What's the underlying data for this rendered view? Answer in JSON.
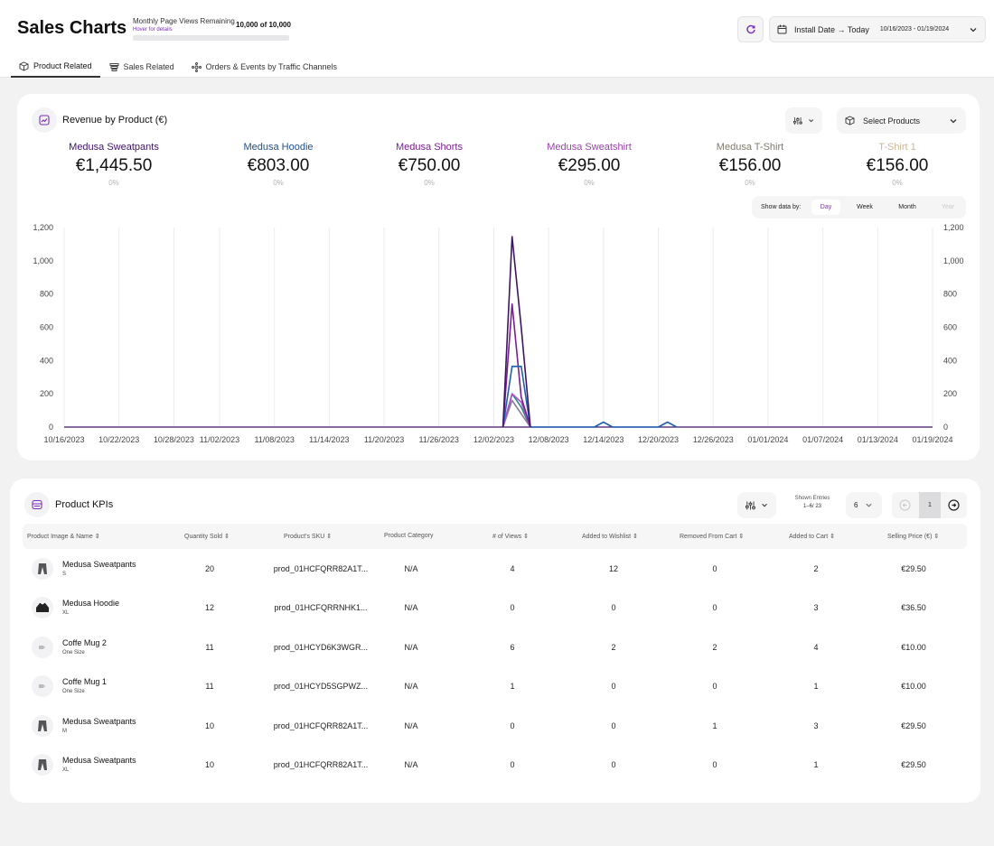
{
  "header": {
    "title": "Sales Charts",
    "page_views_label": "Monthly Page Views Remaining",
    "page_views_hover": "Hover for details",
    "page_views_count": "10,000 of 10,000",
    "page_views_fraction": 1.0,
    "date_filter_label": "Install Date → Today",
    "date_range": "10/16/2023 - 01/19/2024"
  },
  "tabs": [
    {
      "label": "Product Related",
      "icon": "box-icon",
      "active": true
    },
    {
      "label": "Sales Related",
      "icon": "receipt-icon",
      "active": false
    },
    {
      "label": "Orders & Events by Traffic Channels",
      "icon": "network-icon",
      "active": false
    }
  ],
  "revenue_card": {
    "title": "Revenue by Product (€)",
    "select_products_label": "Select Products",
    "show_data_label": "Show data by:",
    "granularity": [
      {
        "label": "Day",
        "active": true
      },
      {
        "label": "Week",
        "active": false
      },
      {
        "label": "Month",
        "active": false
      },
      {
        "label": "Year",
        "active": false,
        "disabled": true
      }
    ],
    "products": [
      {
        "name": "Medusa Sweatpants",
        "value": "€1,445.50",
        "pct": "0%",
        "color": "#3d1466"
      },
      {
        "name": "Medusa Hoodie",
        "value": "€803.00",
        "pct": "0%",
        "color": "#1f4e8c"
      },
      {
        "name": "Medusa Shorts",
        "value": "€750.00",
        "pct": "0%",
        "color": "#7a1f8e"
      },
      {
        "name": "Medusa Sweatshirt",
        "value": "€295.00",
        "pct": "0%",
        "color": "#9b3fb0"
      },
      {
        "name": "Medusa T-Shirt",
        "value": "€156.00",
        "pct": "0%",
        "color": "#7f7a6a"
      },
      {
        "name": "T-Shirt 1",
        "value": "€156.00",
        "pct": "0%",
        "color": "#c8b79a"
      }
    ]
  },
  "chart_data": {
    "type": "line",
    "x_ticks": [
      "10/16/2023",
      "10/22/2023",
      "10/28/2023",
      "11/02/2023",
      "11/08/2023",
      "11/14/2023",
      "11/20/2023",
      "11/26/2023",
      "12/02/2023",
      "12/08/2023",
      "12/14/2023",
      "12/20/2023",
      "12/26/2023",
      "01/01/2024",
      "01/07/2024",
      "01/13/2024",
      "01/19/2024"
    ],
    "y_ticks": [
      "0",
      "200",
      "400",
      "600",
      "800",
      "1,000",
      "1,200"
    ],
    "ylim": [
      0,
      1200
    ],
    "xlim": [
      "10/16/2023",
      "01/19/2024"
    ],
    "grid": "vertical",
    "series": [
      {
        "name": "Medusa Sweatpants",
        "color": "#3d1466",
        "points": [
          [
            "12/03/2023",
            0
          ],
          [
            "12/04/2023",
            1145
          ],
          [
            "12/05/2023",
            600
          ],
          [
            "12/06/2023",
            0
          ]
        ]
      },
      {
        "name": "Medusa Hoodie",
        "color": "#1f5fb0",
        "points": [
          [
            "12/03/2023",
            0
          ],
          [
            "12/04/2023",
            365
          ],
          [
            "12/05/2023",
            365
          ],
          [
            "12/06/2023",
            0
          ],
          [
            "12/13/2023",
            0
          ],
          [
            "12/14/2023",
            30
          ],
          [
            "12/15/2023",
            0
          ],
          [
            "12/20/2023",
            0
          ],
          [
            "12/21/2023",
            30
          ],
          [
            "12/22/2023",
            0
          ]
        ]
      },
      {
        "name": "Medusa Shorts",
        "color": "#7a1f8e",
        "points": [
          [
            "12/03/2023",
            0
          ],
          [
            "12/04/2023",
            740
          ],
          [
            "12/05/2023",
            180
          ],
          [
            "12/06/2023",
            0
          ]
        ]
      },
      {
        "name": "Medusa Sweatshirt",
        "color": "#b04cc4",
        "points": [
          [
            "12/03/2023",
            0
          ],
          [
            "12/04/2023",
            200
          ],
          [
            "12/05/2023",
            150
          ],
          [
            "12/06/2023",
            0
          ]
        ]
      },
      {
        "name": "Medusa T-Shirt",
        "color": "#8a7f96",
        "points": [
          [
            "12/03/2023",
            0
          ],
          [
            "12/04/2023",
            160
          ],
          [
            "12/05/2023",
            80
          ],
          [
            "12/06/2023",
            0
          ]
        ]
      },
      {
        "name": "T-Shirt 1",
        "color": "#2a8a8a",
        "points": [
          [
            "12/03/2023",
            0
          ],
          [
            "12/04/2023",
            200
          ],
          [
            "12/05/2023",
            120
          ],
          [
            "12/06/2023",
            0
          ]
        ]
      }
    ]
  },
  "kpi_card": {
    "title": "Product KPIs",
    "shown_entries_label": "Shown Entries",
    "shown_entries_value": "1–6/ 23",
    "page_size": "6",
    "current_page": "1",
    "columns": [
      "Product Image & Name",
      "Quantity Sold",
      "Product's SKU",
      "Product Category",
      "# of Views",
      "Added to Wishlist",
      "Removed From Cart",
      "Added to Cart",
      "Selling Price (€)"
    ],
    "rows": [
      {
        "name": "Medusa Sweatpants",
        "variant": "S",
        "icon": "sweatpants-icon",
        "qty": "20",
        "sku": "prod_01HCFQRR82A1T...",
        "category": "N/A",
        "views": "4",
        "wishlist": "12",
        "removed": "0",
        "cart": "2",
        "price": "€29.50"
      },
      {
        "name": "Medusa Hoodie",
        "variant": "XL",
        "icon": "hoodie-icon",
        "qty": "12",
        "sku": "prod_01HCFQRRNHK1...",
        "category": "N/A",
        "views": "0",
        "wishlist": "0",
        "removed": "0",
        "cart": "3",
        "price": "€36.50"
      },
      {
        "name": "Coffe Mug 2",
        "variant": "One Size",
        "icon": "mug-icon",
        "qty": "11",
        "sku": "prod_01HCYD6K3WGR...",
        "category": "N/A",
        "views": "6",
        "wishlist": "2",
        "removed": "2",
        "cart": "4",
        "price": "€10.00"
      },
      {
        "name": "Coffe Mug 1",
        "variant": "One Size",
        "icon": "mug-icon",
        "qty": "11",
        "sku": "prod_01HCYD5SGPWZ...",
        "category": "N/A",
        "views": "1",
        "wishlist": "0",
        "removed": "0",
        "cart": "1",
        "price": "€10.00"
      },
      {
        "name": "Medusa Sweatpants",
        "variant": "M",
        "icon": "sweatpants-icon",
        "qty": "10",
        "sku": "prod_01HCFQRR82A1T...",
        "category": "N/A",
        "views": "0",
        "wishlist": "0",
        "removed": "1",
        "cart": "3",
        "price": "€29.50"
      },
      {
        "name": "Medusa Sweatpants",
        "variant": "XL",
        "icon": "sweatpants-icon",
        "qty": "10",
        "sku": "prod_01HCFQRR82A1T...",
        "category": "N/A",
        "views": "0",
        "wishlist": "0",
        "removed": "0",
        "cart": "1",
        "price": "€29.50"
      }
    ]
  }
}
